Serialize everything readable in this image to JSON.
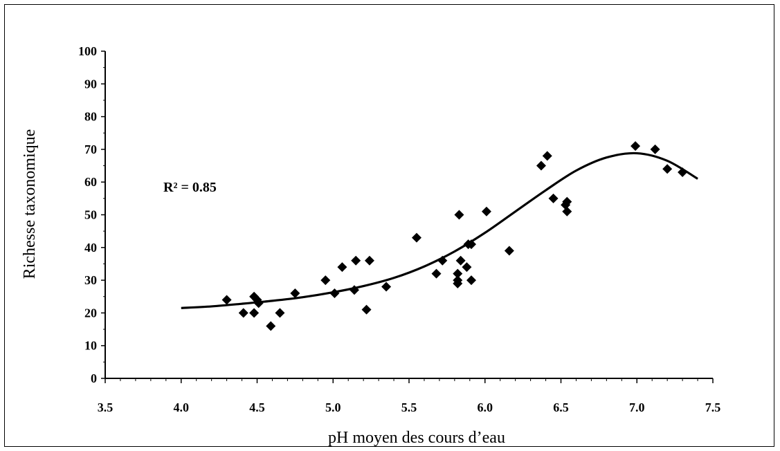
{
  "chart_data": {
    "type": "scatter",
    "xlabel": "pH moyen des cours d’eau",
    "ylabel": "Richesse taxonomique",
    "annotation": "R² = 0.85",
    "xlim": [
      3.5,
      7.5
    ],
    "ylim": [
      0,
      100
    ],
    "x_ticks": [
      "3.5",
      "4.0",
      "4.5",
      "5.0",
      "5.5",
      "6.0",
      "6.5",
      "7.0",
      "7.5"
    ],
    "y_ticks": [
      "0",
      "10",
      "20",
      "30",
      "40",
      "50",
      "60",
      "70",
      "80",
      "90",
      "100"
    ],
    "grid": false,
    "marker": "diamond",
    "colors": {
      "marker": "#000000",
      "line": "#000000"
    },
    "points": [
      {
        "x": 4.3,
        "y": 24
      },
      {
        "x": 4.41,
        "y": 20
      },
      {
        "x": 4.48,
        "y": 25
      },
      {
        "x": 4.48,
        "y": 20
      },
      {
        "x": 4.5,
        "y": 24
      },
      {
        "x": 4.51,
        "y": 23
      },
      {
        "x": 4.59,
        "y": 16
      },
      {
        "x": 4.65,
        "y": 20
      },
      {
        "x": 4.75,
        "y": 26
      },
      {
        "x": 4.95,
        "y": 30
      },
      {
        "x": 5.01,
        "y": 26
      },
      {
        "x": 5.06,
        "y": 34
      },
      {
        "x": 5.14,
        "y": 27
      },
      {
        "x": 5.15,
        "y": 36
      },
      {
        "x": 5.22,
        "y": 21
      },
      {
        "x": 5.24,
        "y": 36
      },
      {
        "x": 5.35,
        "y": 28
      },
      {
        "x": 5.55,
        "y": 43
      },
      {
        "x": 5.68,
        "y": 32
      },
      {
        "x": 5.72,
        "y": 36
      },
      {
        "x": 5.82,
        "y": 30
      },
      {
        "x": 5.82,
        "y": 32
      },
      {
        "x": 5.82,
        "y": 29
      },
      {
        "x": 5.83,
        "y": 50
      },
      {
        "x": 5.84,
        "y": 36
      },
      {
        "x": 5.88,
        "y": 34
      },
      {
        "x": 5.89,
        "y": 41
      },
      {
        "x": 5.91,
        "y": 41
      },
      {
        "x": 5.91,
        "y": 30
      },
      {
        "x": 6.01,
        "y": 51
      },
      {
        "x": 6.16,
        "y": 39
      },
      {
        "x": 6.37,
        "y": 65
      },
      {
        "x": 6.41,
        "y": 68
      },
      {
        "x": 6.45,
        "y": 55
      },
      {
        "x": 6.53,
        "y": 53
      },
      {
        "x": 6.54,
        "y": 54
      },
      {
        "x": 6.54,
        "y": 51
      },
      {
        "x": 6.99,
        "y": 71
      },
      {
        "x": 7.12,
        "y": 70
      },
      {
        "x": 7.2,
        "y": 64
      },
      {
        "x": 7.3,
        "y": 63
      }
    ],
    "fit_curve": {
      "x": [
        4.0,
        4.2,
        4.4,
        4.6,
        4.8,
        5.0,
        5.2,
        5.4,
        5.6,
        5.8,
        6.0,
        6.2,
        6.4,
        6.6,
        6.8,
        7.0,
        7.2,
        7.4
      ],
      "y": [
        21.5,
        22.0,
        22.8,
        23.7,
        24.8,
        26.3,
        28.2,
        30.7,
        34.2,
        38.8,
        44.5,
        51.0,
        57.5,
        63.5,
        67.5,
        68.8,
        66.5,
        61.0
      ]
    }
  }
}
